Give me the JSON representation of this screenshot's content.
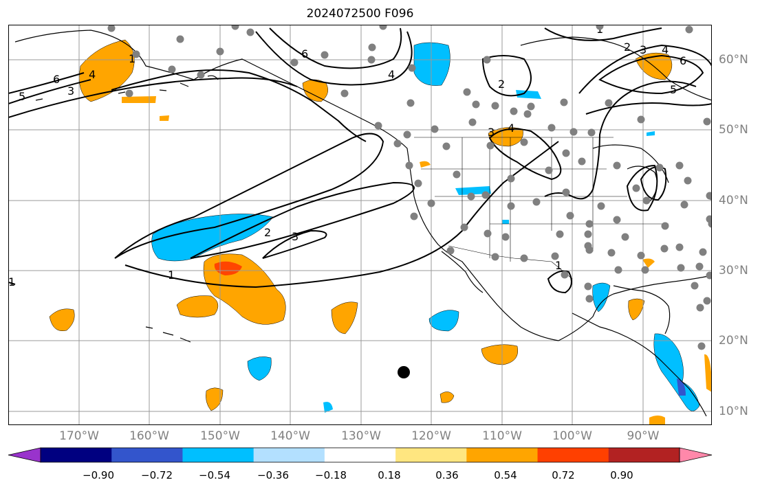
{
  "title": "2024072500 F096",
  "lon_labels": [
    "170°W",
    "160°W",
    "150°W",
    "140°W",
    "130°W",
    "120°W",
    "110°W",
    "100°W",
    "90°W"
  ],
  "lat_labels": [
    "60°N",
    "50°N",
    "40°N",
    "30°N",
    "20°N",
    "10°N"
  ],
  "colorbar": {
    "ticks": [
      "−0.90",
      "−0.72",
      "−0.54",
      "−0.36",
      "−0.18",
      "0.18",
      "0.36",
      "0.54",
      "0.72",
      "0.90"
    ],
    "colors": [
      "#9933cc",
      "#000080",
      "#3355cc",
      "#00bfff",
      "#b3e0ff",
      "#ffffff",
      "#ffe680",
      "#ffa500",
      "#ff4000",
      "#b22222",
      "#ff88aa"
    ]
  },
  "contour_labels": [
    "6",
    "5",
    "4",
    "3",
    "1",
    "6",
    "4",
    "2",
    "3",
    "4",
    "2",
    "3",
    "4",
    "6",
    "5",
    "1",
    "2",
    "3",
    "1",
    "1",
    "1"
  ],
  "colors": {
    "orange": "#ffa500",
    "red": "#ff4500",
    "cyan": "#00bfff",
    "blue": "#3355cc",
    "grid": "#999999",
    "station": "#808080"
  }
}
